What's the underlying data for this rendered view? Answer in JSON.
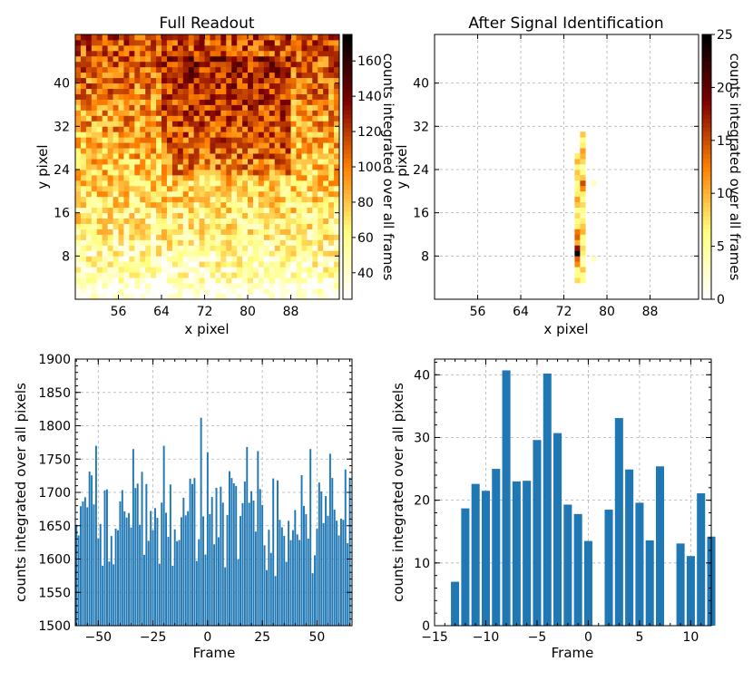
{
  "chart_data": [
    {
      "type": "heatmap",
      "title": "Full Readout",
      "xlabel": "x pixel",
      "ylabel": "y pixel",
      "colorbar_label": "counts integrated over all frames",
      "colormap": "afmhot_r",
      "x_ticks": [
        "56",
        "64",
        "72",
        "80",
        "88"
      ],
      "y_ticks": [
        "8",
        "16",
        "24",
        "32",
        "40"
      ],
      "x_range": [
        48,
        97
      ],
      "y_range": [
        0,
        49
      ],
      "colorbar_range": [
        25,
        175
      ],
      "colorbar_ticks": [
        "40",
        "60",
        "80",
        "100",
        "120",
        "140",
        "160"
      ],
      "description_values": "counts increase from ~40 at bottom rows to ~120-160 at top rows"
    },
    {
      "type": "heatmap",
      "title": "After Signal Identification",
      "xlabel": "x pixel",
      "ylabel": "y pixel",
      "colorbar_label": "counts integrated over all frames",
      "colormap": "afmhot_r",
      "x_ticks": [
        "56",
        "64",
        "72",
        "80",
        "88"
      ],
      "y_ticks": [
        "8",
        "16",
        "24",
        "32",
        "40"
      ],
      "x_range": [
        48,
        97
      ],
      "y_range": [
        0,
        49
      ],
      "colorbar_range": [
        0,
        25
      ],
      "colorbar_ticks": [
        "0",
        "5",
        "10",
        "15",
        "20",
        "25"
      ],
      "signal_column_values": [
        {
          "x": 74,
          "y": [
            3,
            4,
            5,
            6,
            7,
            8,
            9,
            10,
            11,
            12,
            13,
            14,
            15,
            16,
            17,
            18,
            19,
            20,
            21,
            22,
            23,
            24,
            25,
            26
          ],
          "v": [
            8,
            6,
            5,
            12,
            14,
            25,
            18,
            10,
            14,
            13,
            7,
            6,
            8,
            5,
            9,
            11,
            7,
            6,
            5,
            8,
            9,
            6,
            10,
            7
          ]
        },
        {
          "x": 75,
          "y": [
            3,
            4,
            5,
            6,
            7,
            8,
            9,
            10,
            11,
            12,
            13,
            14,
            15,
            16,
            17,
            18,
            19,
            20,
            21,
            22,
            23,
            24,
            25,
            26,
            27,
            28,
            29,
            30
          ],
          "v": [
            6,
            5,
            9,
            4,
            3,
            7,
            8,
            5,
            6,
            10,
            9,
            7,
            4,
            6,
            8,
            5,
            7,
            12,
            15,
            9,
            6,
            4,
            8,
            10,
            11,
            7,
            6,
            9
          ]
        },
        {
          "x": 77,
          "y": [
            7,
            21
          ],
          "v": [
            3,
            3
          ]
        }
      ]
    },
    {
      "type": "bar",
      "xlabel": "Frame",
      "ylabel": "counts integrated over all pixels",
      "xlim": [
        -60.5,
        66
      ],
      "ylim": [
        1500,
        1900
      ],
      "x_ticks": [
        "−50",
        "−25",
        "0",
        "25",
        "50"
      ],
      "y_ticks": [
        "1500",
        "1550",
        "1600",
        "1650",
        "1700",
        "1750",
        "1800",
        "1850",
        "1900"
      ],
      "x_start": -60,
      "x_end": 65,
      "value_range": [
        1560,
        1812
      ]
    },
    {
      "type": "bar",
      "xlabel": "Frame",
      "ylabel": "counts integrated over all pixels",
      "xlim": [
        -15,
        12
      ],
      "ylim": [
        0,
        42.5
      ],
      "x_ticks": [
        "−15",
        "−10",
        "−5",
        "0",
        "5",
        "10"
      ],
      "y_ticks": [
        "0",
        "10",
        "20",
        "30",
        "40"
      ],
      "x": [
        -13,
        -12,
        -11,
        -10,
        -9,
        -8,
        -7,
        -6,
        -5,
        -4,
        -3,
        -2,
        -1,
        0,
        1,
        2,
        3,
        4,
        5,
        6,
        7,
        8,
        9,
        10,
        11,
        12
      ],
      "values": [
        7.0,
        18.7,
        22.6,
        21.5,
        25.0,
        40.7,
        23.0,
        23.1,
        29.6,
        40.2,
        30.7,
        19.3,
        17.8,
        13.5,
        0,
        18.5,
        33.1,
        24.9,
        19.6,
        13.6,
        25.4,
        0,
        13.1,
        11.1,
        21.1,
        14.2
      ]
    }
  ]
}
